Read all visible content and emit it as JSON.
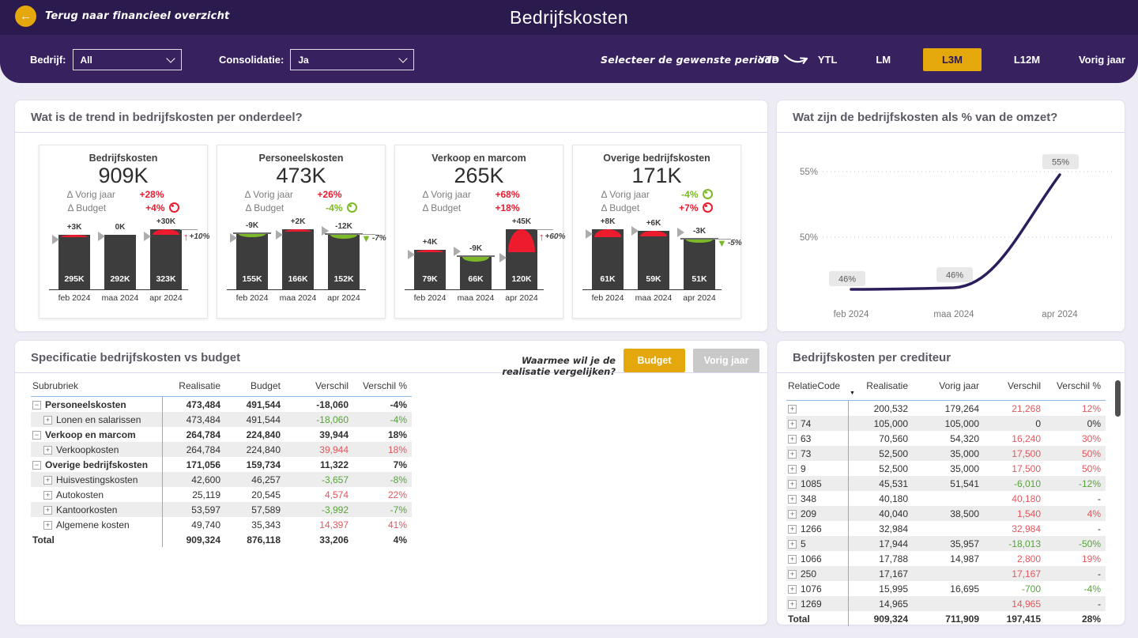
{
  "colors": {
    "gold": "#E4A70C",
    "header_dark": "#2B1A4E",
    "header_light": "#37215F",
    "kpi_red": "#EC1B2E",
    "kpi_green": "#7CB928",
    "table_red": "#E0585E",
    "table_green": "#57A23B",
    "bar": "#3D3D3D",
    "line": "#2C1D5D"
  },
  "header": {
    "back_label": "Terug naar financieel overzicht",
    "title": "Bedrijfskosten",
    "filters": {
      "bedrijf_label": "Bedrijf:",
      "bedrijf_value": "All",
      "consolidatie_label": "Consolidatie:",
      "consolidatie_value": "Ja"
    },
    "period": {
      "hint": "Selecteer de gewenste periode",
      "options": [
        "YTD",
        "YTL",
        "LM",
        "L3M",
        "L12M",
        "Vorig jaar"
      ],
      "selected": "L3M"
    }
  },
  "panels": {
    "trend": {
      "title": "Wat is de trend in bedrijfskosten per onderdeel?"
    },
    "pct": {
      "title": "Wat zijn de bedrijfskosten als % van de omzet?"
    },
    "spec": {
      "title": "Specificatie bedrijfskosten vs budget",
      "compare_hint": "Waarmee wil je de realisatie vergelijken?",
      "compare_options": [
        "Budget",
        "Vorig jaar"
      ],
      "compare_selected": "Budget"
    },
    "cred": {
      "title": "Bedrijfskosten per crediteur"
    }
  },
  "chart_data": [
    {
      "type": "bar",
      "title": "Bedrijfskosten",
      "total": "909K",
      "deltas": [
        {
          "label": "Δ Vorig jaar",
          "value": "+28%",
          "color": "red",
          "icon": "arrow-up"
        },
        {
          "label": "Δ Budget",
          "value": "+4%",
          "color": "red",
          "icon": "dot"
        }
      ],
      "categories": [
        "feb 2024",
        "maa 2024",
        "apr 2024"
      ],
      "values": [
        295,
        292,
        323
      ],
      "value_labels": [
        "295K",
        "292K",
        "323K"
      ],
      "delta_values": [
        3,
        0,
        30
      ],
      "delta_labels": [
        "+3K",
        "0K",
        "+30K"
      ],
      "annotation": {
        "text": "+10%",
        "direction": "up",
        "color": "red"
      }
    },
    {
      "type": "bar",
      "title": "Personeelskosten",
      "total": "473K",
      "deltas": [
        {
          "label": "Δ Vorig jaar",
          "value": "+26%",
          "color": "red",
          "icon": "arrow-up"
        },
        {
          "label": "Δ Budget",
          "value": "-4%",
          "color": "green",
          "icon": "dot"
        }
      ],
      "categories": [
        "feb 2024",
        "maa 2024",
        "apr 2024"
      ],
      "values": [
        155,
        166,
        152
      ],
      "value_labels": [
        "155K",
        "166K",
        "152K"
      ],
      "delta_values": [
        -9,
        2,
        -12
      ],
      "delta_labels": [
        "-9K",
        "+2K",
        "-12K"
      ],
      "annotation": {
        "text": "-7%",
        "direction": "down",
        "color": "green"
      }
    },
    {
      "type": "bar",
      "title": "Verkoop en marcom",
      "total": "265K",
      "deltas": [
        {
          "label": "Δ Vorig jaar",
          "value": "+68%",
          "color": "red",
          "icon": "arrow-up"
        },
        {
          "label": "Δ Budget",
          "value": "+18%",
          "color": "red",
          "icon": "arrow-up"
        }
      ],
      "categories": [
        "feb 2024",
        "maa 2024",
        "apr 2024"
      ],
      "values": [
        79,
        66,
        120
      ],
      "value_labels": [
        "79K",
        "66K",
        "120K"
      ],
      "delta_values": [
        4,
        -9,
        45
      ],
      "delta_labels": [
        "+4K",
        "-9K",
        "+45K"
      ],
      "annotation": {
        "text": "+60%",
        "direction": "up",
        "color": "red"
      }
    },
    {
      "type": "bar",
      "title": "Overige bedrijfskosten",
      "total": "171K",
      "deltas": [
        {
          "label": "Δ Vorig jaar",
          "value": "-4%",
          "color": "green",
          "icon": "dot"
        },
        {
          "label": "Δ Budget",
          "value": "+7%",
          "color": "red",
          "icon": "dot"
        }
      ],
      "categories": [
        "feb 2024",
        "maa 2024",
        "apr 2024"
      ],
      "values": [
        61,
        59,
        51
      ],
      "value_labels": [
        "61K",
        "59K",
        "51K"
      ],
      "delta_values": [
        8,
        6,
        -3
      ],
      "delta_labels": [
        "+8K",
        "+6K",
        "-3K"
      ],
      "annotation": {
        "text": "-5%",
        "direction": "down",
        "color": "green"
      }
    },
    {
      "type": "line",
      "title": "Wat zijn de bedrijfskosten als % van de omzet?",
      "x": [
        "feb 2024",
        "maa 2024",
        "apr 2024"
      ],
      "values": [
        46,
        46,
        55
      ],
      "labels": [
        "46%",
        "46%",
        "55%"
      ],
      "yticks": [
        50,
        55
      ],
      "ylim": [
        44,
        57
      ],
      "grid": "dotted"
    }
  ],
  "spec_table": {
    "headers": [
      "Subrubriek",
      "Realisatie",
      "Budget",
      "Verschil",
      "Verschil %"
    ],
    "rows": [
      {
        "icon": "minus",
        "indent": 0,
        "bold": true,
        "label": "Personeelskosten",
        "cols": [
          "473,484",
          "491,544",
          "-18,060",
          "-4%"
        ],
        "color": ""
      },
      {
        "icon": "plus",
        "indent": 1,
        "bold": false,
        "label": "Lonen en salarissen",
        "cols": [
          "473,484",
          "491,544",
          "-18,060",
          "-4%"
        ],
        "color": "green"
      },
      {
        "icon": "minus",
        "indent": 0,
        "bold": true,
        "label": "Verkoop en marcom",
        "cols": [
          "264,784",
          "224,840",
          "39,944",
          "18%"
        ],
        "color": ""
      },
      {
        "icon": "plus",
        "indent": 1,
        "bold": false,
        "label": "Verkoopkosten",
        "cols": [
          "264,784",
          "224,840",
          "39,944",
          "18%"
        ],
        "color": "red"
      },
      {
        "icon": "minus",
        "indent": 0,
        "bold": true,
        "label": "Overige bedrijfskosten",
        "cols": [
          "171,056",
          "159,734",
          "11,322",
          "7%"
        ],
        "color": ""
      },
      {
        "icon": "plus",
        "indent": 1,
        "bold": false,
        "label": "Huisvestingskosten",
        "cols": [
          "42,600",
          "46,257",
          "-3,657",
          "-8%"
        ],
        "color": "green"
      },
      {
        "icon": "plus",
        "indent": 1,
        "bold": false,
        "label": "Autokosten",
        "cols": [
          "25,119",
          "20,545",
          "4,574",
          "22%"
        ],
        "color": "red"
      },
      {
        "icon": "plus",
        "indent": 1,
        "bold": false,
        "label": "Kantoorkosten",
        "cols": [
          "53,597",
          "57,589",
          "-3,992",
          "-7%"
        ],
        "color": "green"
      },
      {
        "icon": "plus",
        "indent": 1,
        "bold": false,
        "label": "Algemene kosten",
        "cols": [
          "49,740",
          "35,343",
          "14,397",
          "41%"
        ],
        "color": "red"
      },
      {
        "icon": "",
        "indent": 0,
        "bold": true,
        "label": "Total",
        "total": true,
        "cols": [
          "909,324",
          "876,118",
          "33,206",
          "4%"
        ],
        "color": ""
      }
    ]
  },
  "cred_table": {
    "headers": [
      "RelatieCode",
      "Realisatie",
      "Vorig jaar",
      "Verschil",
      "Verschil %"
    ],
    "sort_column": "Realisatie",
    "rows": [
      {
        "icon": "plus",
        "label": "",
        "cols": [
          "200,532",
          "179,264",
          "21,268",
          "12%"
        ],
        "color": "red"
      },
      {
        "icon": "plus",
        "label": "74",
        "cols": [
          "105,000",
          "105,000",
          "0",
          "0%"
        ],
        "color": ""
      },
      {
        "icon": "plus",
        "label": "63",
        "cols": [
          "70,560",
          "54,320",
          "16,240",
          "30%"
        ],
        "color": "red"
      },
      {
        "icon": "plus",
        "label": "73",
        "cols": [
          "52,500",
          "35,000",
          "17,500",
          "50%"
        ],
        "color": "red"
      },
      {
        "icon": "plus",
        "label": "9",
        "cols": [
          "52,500",
          "35,000",
          "17,500",
          "50%"
        ],
        "color": "red"
      },
      {
        "icon": "plus",
        "label": "1085",
        "cols": [
          "45,531",
          "51,541",
          "-6,010",
          "-12%"
        ],
        "color": "green"
      },
      {
        "icon": "plus",
        "label": "348",
        "cols": [
          "40,180",
          "",
          "40,180",
          "-"
        ],
        "color": "red"
      },
      {
        "icon": "plus",
        "label": "209",
        "cols": [
          "40,040",
          "38,500",
          "1,540",
          "4%"
        ],
        "color": "red"
      },
      {
        "icon": "plus",
        "label": "1266",
        "cols": [
          "32,984",
          "",
          "32,984",
          "-"
        ],
        "color": "red"
      },
      {
        "icon": "plus",
        "label": "5",
        "cols": [
          "17,944",
          "35,957",
          "-18,013",
          "-50%"
        ],
        "color": "green"
      },
      {
        "icon": "plus",
        "label": "1066",
        "cols": [
          "17,788",
          "14,987",
          "2,800",
          "19%"
        ],
        "color": "red"
      },
      {
        "icon": "plus",
        "label": "250",
        "cols": [
          "17,167",
          "",
          "17,167",
          "-"
        ],
        "color": "red"
      },
      {
        "icon": "plus",
        "label": "1076",
        "cols": [
          "15,995",
          "16,695",
          "-700",
          "-4%"
        ],
        "color": "green"
      },
      {
        "icon": "plus",
        "label": "1269",
        "cols": [
          "14,965",
          "",
          "14,965",
          "-"
        ],
        "color": "red"
      },
      {
        "icon": "",
        "label": "Total",
        "total": true,
        "bold": true,
        "cols": [
          "909,324",
          "711,909",
          "197,415",
          "28%"
        ],
        "color": ""
      }
    ]
  }
}
